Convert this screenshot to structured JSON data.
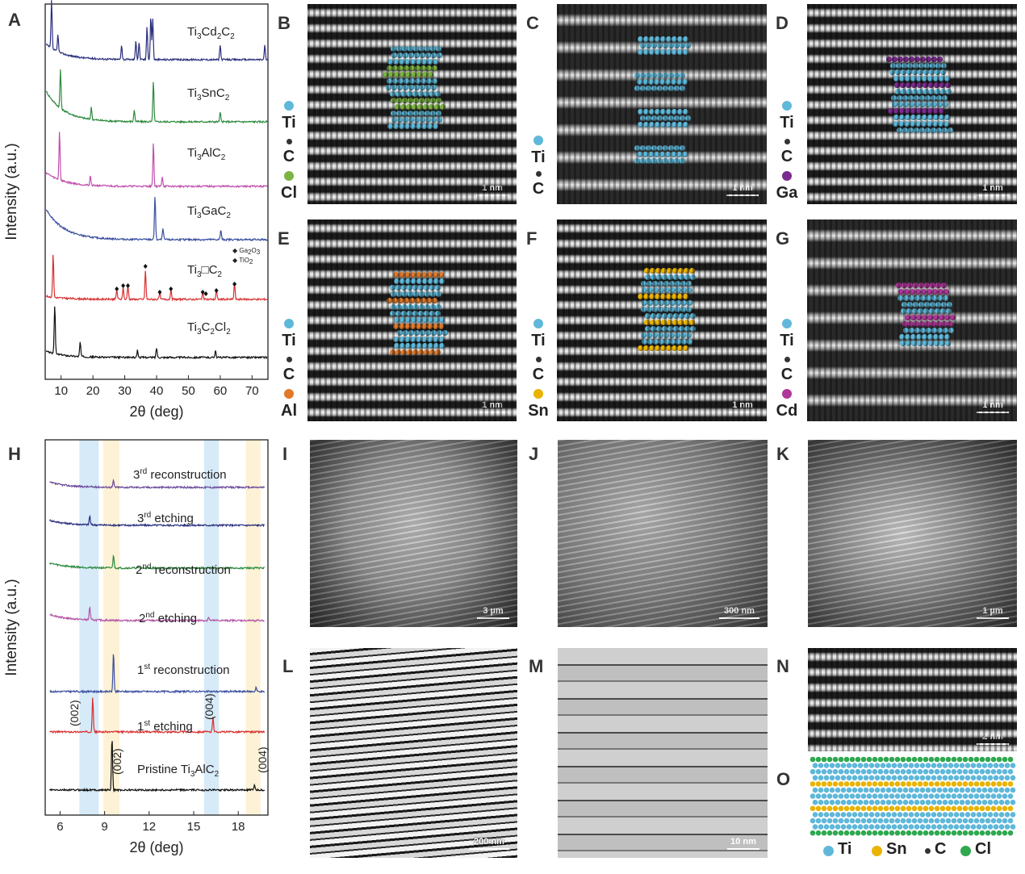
{
  "panel_letters": {
    "A": "A",
    "B": "B",
    "C": "C",
    "D": "D",
    "E": "E",
    "F": "F",
    "G": "G",
    "H": "H",
    "I": "I",
    "J": "J",
    "K": "K",
    "L": "L",
    "M": "M",
    "N": "N",
    "O": "O"
  },
  "colors": {
    "Ti": "#5fb8d9",
    "C": "#333333",
    "Cl_B": "#7cb342",
    "Ga": "#7b2c8e",
    "Al": "#e07a2a",
    "Sn": "#e9b300",
    "Cd": "#b0379a",
    "Cl_O": "#2fa84f"
  },
  "panelA": {
    "ylabel": "Intensity (a.u.)",
    "xlabel": "2θ (deg)",
    "xticks": [
      "10",
      "20",
      "30",
      "40",
      "50",
      "60",
      "70"
    ],
    "labels": [
      {
        "main": "Ti",
        "s1": "3",
        "m2": "Cd",
        "s2": "2",
        "m3": "C",
        "s3": "2"
      },
      {
        "main": "Ti",
        "s1": "3",
        "m2": "SnC",
        "s2": "2",
        "m3": "",
        "s3": ""
      },
      {
        "main": "Ti",
        "s1": "3",
        "m2": "AlC",
        "s2": "2",
        "m3": "",
        "s3": ""
      },
      {
        "main": "Ti",
        "s1": "3",
        "m2": "GaC",
        "s2": "2",
        "m3": "",
        "s3": ""
      },
      {
        "main": "Ti",
        "s1": "3",
        "m2": "□C",
        "s2": "2",
        "m3": "",
        "s3": ""
      },
      {
        "main": "Ti",
        "s1": "3",
        "m2": "C",
        "s2": "2",
        "m3": "Cl",
        "s3": "2"
      }
    ],
    "legend_ga": "Ga",
    "legend_ga_sub": "2",
    "legend_ga_o": "O",
    "legend_ga_sub2": "3",
    "legend_tio": "TiO",
    "legend_tio_sub": "2",
    "series_colors": [
      "#2b2f7e",
      "#2e8b3e",
      "#c24fae",
      "#3b4fa0",
      "#d93131",
      "#111111"
    ]
  },
  "chart_data": [
    {
      "type": "line",
      "xlabel": "2θ (deg)",
      "ylabel": "Intensity (a.u.)",
      "xlim": [
        5,
        75
      ],
      "x_ticks": [
        10,
        20,
        30,
        40,
        50,
        60,
        70
      ],
      "series": [
        {
          "name": "Ti3Cd2C2",
          "peaks": [
            [
              7,
              1.0
            ],
            [
              9,
              0.35
            ],
            [
              29,
              0.3
            ],
            [
              33.5,
              0.4
            ],
            [
              34.5,
              0.35
            ],
            [
              37,
              0.7
            ],
            [
              38.2,
              0.9
            ],
            [
              38.8,
              0.85
            ],
            [
              60,
              0.3
            ],
            [
              74,
              0.3
            ]
          ]
        },
        {
          "name": "Ti3SnC2",
          "peaks": [
            [
              9.8,
              0.8
            ],
            [
              19.5,
              0.25
            ],
            [
              33,
              0.25
            ],
            [
              39,
              0.85
            ],
            [
              60,
              0.2
            ]
          ]
        },
        {
          "name": "Ti3AlC2",
          "peaks": [
            [
              9.5,
              1.0
            ],
            [
              19.2,
              0.2
            ],
            [
              39,
              0.9
            ],
            [
              41.8,
              0.2
            ]
          ]
        },
        {
          "name": "Ti3GaC2",
          "peaks": [
            [
              39.5,
              0.9
            ],
            [
              42,
              0.25
            ],
            [
              60.2,
              0.2
            ]
          ]
        },
        {
          "name": "Ti3□C2",
          "peaks": [
            [
              7.5,
              0.9
            ],
            [
              27.5,
              0.2
            ],
            [
              29.5,
              0.25
            ],
            [
              31,
              0.3
            ],
            [
              36.5,
              0.6
            ],
            [
              41,
              0.15
            ],
            [
              44.5,
              0.2
            ],
            [
              54.5,
              0.15
            ],
            [
              58.8,
              0.2
            ],
            [
              64.5,
              0.35
            ]
          ]
        },
        {
          "name": "Ti3C2Cl2",
          "peaks": [
            [
              8,
              1.0
            ],
            [
              16,
              0.3
            ],
            [
              34,
              0.15
            ],
            [
              40,
              0.2
            ],
            [
              58.5,
              0.15
            ]
          ]
        }
      ]
    },
    {
      "type": "line",
      "xlabel": "2θ (deg)",
      "ylabel": "Intensity (a.u.)",
      "xlim": [
        5,
        20
      ],
      "x_ticks": [
        6,
        9,
        12,
        15,
        18
      ],
      "series": [
        {
          "name": "3rd reconstruction",
          "peaks": [
            [
              9.6,
              0.15
            ]
          ]
        },
        {
          "name": "3rd etching",
          "peaks": [
            [
              8,
              0.2
            ]
          ]
        },
        {
          "name": "2nd reconstruction",
          "peaks": [
            [
              9.6,
              0.3
            ]
          ]
        },
        {
          "name": "2nd etching",
          "peaks": [
            [
              8,
              0.3
            ],
            [
              16,
              0.08
            ]
          ]
        },
        {
          "name": "1st reconstruction",
          "peaks": [
            [
              9.6,
              0.9
            ],
            [
              19.2,
              0.1
            ]
          ]
        },
        {
          "name": "1st etching",
          "peaks": [
            [
              8.2,
              0.8
            ],
            [
              16.3,
              0.35
            ]
          ]
        },
        {
          "name": "Pristine Ti3AlC2",
          "peaks": [
            [
              9.5,
              1.2
            ],
            [
              19.1,
              0.12
            ]
          ]
        }
      ]
    }
  ],
  "panelH": {
    "ylabel": "Intensity (a.u.)",
    "xlabel": "2θ (deg)",
    "xticks": [
      "6",
      "9",
      "12",
      "15",
      "18"
    ],
    "labels": [
      {
        "pre": "3",
        "sup": "rd",
        "post": " reconstruction"
      },
      {
        "pre": "3",
        "sup": "rd",
        "post": " etching"
      },
      {
        "pre": "2",
        "sup": "nd",
        "post": " reconstruction"
      },
      {
        "pre": "2",
        "sup": "nd",
        "post": " etching"
      },
      {
        "pre": "1",
        "sup": "st",
        "post": " reconstruction"
      },
      {
        "pre": "1",
        "sup": "st",
        "post": " etching"
      }
    ],
    "pristine_pre": "Pristine Ti",
    "pristine_sub1": "3",
    "pristine_mid": "AlC",
    "pristine_sub2": "2",
    "peak_002": "(002)",
    "peak_004": "(004)",
    "series_colors": [
      "#6a4a9a",
      "#2b2f7e",
      "#2e8b3e",
      "#b455a6",
      "#3b4fa0",
      "#d93131",
      "#111111"
    ]
  },
  "legends": {
    "B": [
      "Ti",
      "C",
      "Cl"
    ],
    "C": [
      "Ti",
      "C"
    ],
    "D": [
      "Ti",
      "C",
      "Ga"
    ],
    "E": [
      "Ti",
      "C",
      "Al"
    ],
    "F": [
      "Ti",
      "C",
      "Sn"
    ],
    "G": [
      "Ti",
      "C",
      "Cd"
    ]
  },
  "scalebars": {
    "B": "1 nm",
    "C": "1 nm",
    "D": "1 nm",
    "E": "1 nm",
    "F": "1 nm",
    "G": "1 nm",
    "I": "3 µm",
    "J": "300 nm",
    "K": "1 µm",
    "L": "200 nm",
    "M": "10 nm",
    "N": "2 nm"
  },
  "legendO": [
    "Ti",
    "Sn",
    "C",
    "Cl"
  ]
}
